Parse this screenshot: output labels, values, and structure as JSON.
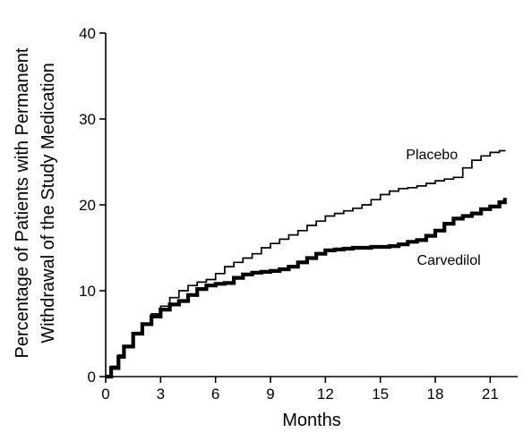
{
  "chart_data": {
    "type": "line",
    "title": "",
    "xlabel": "Months",
    "ylabel_lines": [
      "Percentage of Patients with Permanent",
      "Withdrawal of the Study Medication"
    ],
    "xlim": [
      0,
      22.5
    ],
    "ylim": [
      0,
      40
    ],
    "xticks": [
      0,
      3,
      6,
      9,
      12,
      15,
      18,
      21
    ],
    "yticks": [
      0,
      10,
      20,
      30,
      40
    ],
    "grid": false,
    "series": [
      {
        "name": "Placebo",
        "color": "#000000",
        "style": "thin-step",
        "x": [
          0,
          0.3,
          0.7,
          1.0,
          1.5,
          2.0,
          2.5,
          3.0,
          3.5,
          4.0,
          4.5,
          5.0,
          5.5,
          6.0,
          6.5,
          7.0,
          7.5,
          8.0,
          8.5,
          9.0,
          9.5,
          10.0,
          10.5,
          11.0,
          11.5,
          12.0,
          12.5,
          13.0,
          13.5,
          14.0,
          14.5,
          15.0,
          15.5,
          16.0,
          16.5,
          17.0,
          17.5,
          18.0,
          18.5,
          19.0,
          19.5,
          20.0,
          20.5,
          21.0,
          21.5,
          21.8
        ],
        "y": [
          0,
          1.2,
          2.5,
          3.6,
          5.0,
          6.2,
          7.3,
          8.2,
          9.2,
          10.0,
          10.6,
          11.0,
          11.3,
          12.0,
          12.8,
          13.3,
          13.8,
          14.3,
          15.0,
          15.5,
          16.0,
          16.5,
          17.0,
          17.6,
          18.1,
          18.7,
          19.0,
          19.3,
          19.6,
          20.0,
          20.6,
          21.2,
          21.6,
          21.9,
          22.0,
          22.2,
          22.5,
          22.8,
          23.0,
          23.2,
          24.3,
          25.2,
          25.7,
          26.1,
          26.3,
          26.4
        ]
      },
      {
        "name": "Carvedilol",
        "color": "#000000",
        "style": "thick-step",
        "x": [
          0,
          0.3,
          0.7,
          1.0,
          1.5,
          2.0,
          2.5,
          3.0,
          3.5,
          4.0,
          4.5,
          5.0,
          5.5,
          6.0,
          6.5,
          7.0,
          7.5,
          8.0,
          8.5,
          9.0,
          9.5,
          10.0,
          10.5,
          11.0,
          11.5,
          12.0,
          12.5,
          13.0,
          13.5,
          14.0,
          14.5,
          15.0,
          15.5,
          16.0,
          16.5,
          17.0,
          17.5,
          18.0,
          18.5,
          19.0,
          19.5,
          20.0,
          20.5,
          21.0,
          21.5,
          21.8
        ],
        "y": [
          0,
          1.0,
          2.3,
          3.5,
          5.0,
          6.1,
          7.0,
          7.8,
          8.4,
          8.8,
          9.5,
          10.2,
          10.6,
          10.8,
          10.9,
          11.5,
          11.9,
          12.1,
          12.2,
          12.3,
          12.5,
          12.8,
          13.3,
          13.8,
          14.3,
          14.7,
          14.8,
          14.9,
          15.0,
          15.0,
          15.1,
          15.1,
          15.2,
          15.4,
          15.7,
          15.9,
          16.4,
          17.0,
          17.8,
          18.4,
          18.7,
          19.0,
          19.5,
          19.8,
          20.3,
          20.8
        ]
      }
    ],
    "labels": {
      "placebo": "Placebo",
      "carvedilol": "Carvedilol"
    }
  }
}
